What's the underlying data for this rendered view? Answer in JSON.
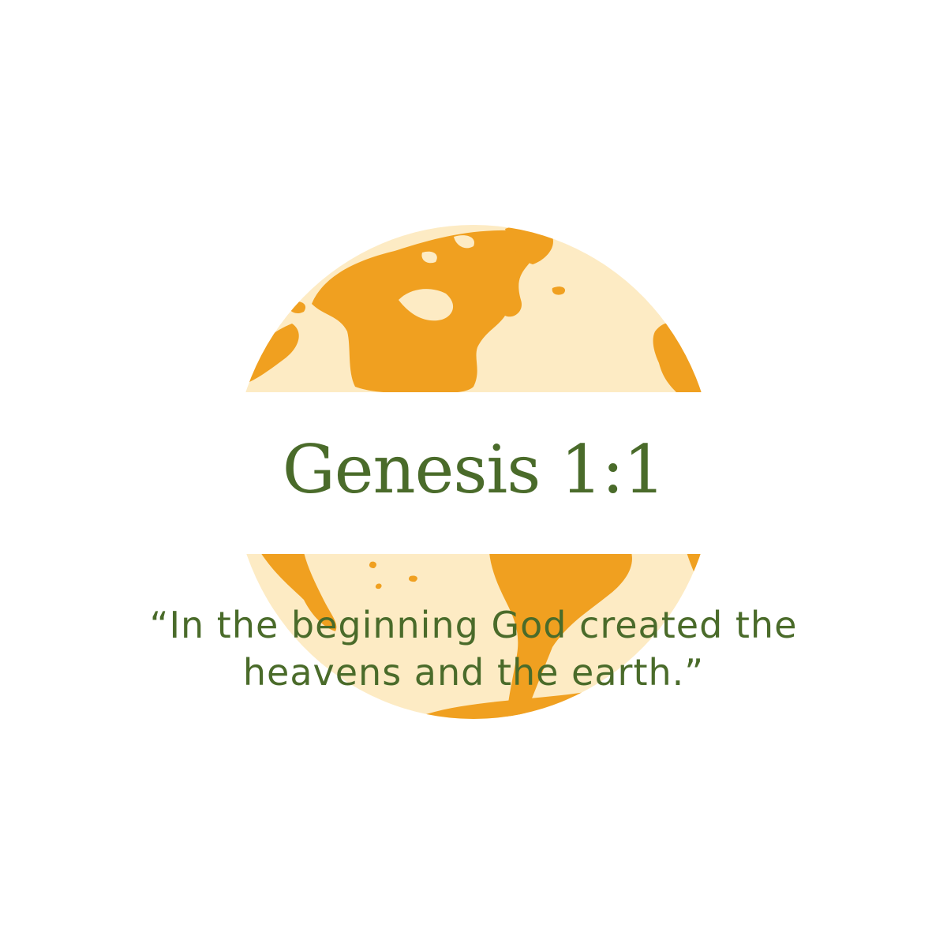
{
  "title": "Genesis 1:1",
  "quote": {
    "line1": "“In the beginning God created the",
    "line2": "heavens and the earth.”"
  },
  "colors": {
    "background": "#ffffff",
    "ocean": "#fdebc4",
    "land": "#f0a020",
    "band": "#ffffff",
    "text": "#4a6b2a"
  },
  "icon": "globe-icon"
}
